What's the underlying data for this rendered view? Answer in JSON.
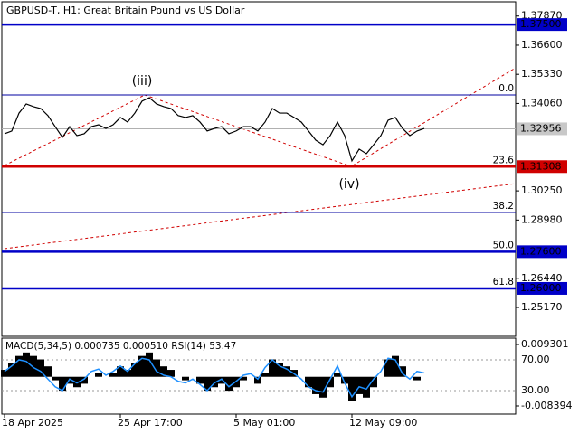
{
  "chart_data": [
    {
      "type": "line",
      "title": "GBPUSD-T, H1:  Great Britain Pound vs US Dollar",
      "categories": [
        "18 Apr 2025",
        null,
        null,
        null,
        null,
        null,
        null,
        null,
        null,
        null,
        null,
        null,
        null,
        null,
        null,
        null,
        "25 Apr 17:00",
        null,
        null,
        null,
        null,
        null,
        null,
        null,
        null,
        null,
        null,
        null,
        null,
        null,
        null,
        null,
        "5 May 01:00",
        null,
        null,
        null,
        null,
        null,
        null,
        null,
        null,
        null,
        null,
        null,
        null,
        null,
        null,
        null,
        "12 May 09:00",
        null,
        null,
        null,
        null,
        null,
        null,
        null,
        null,
        null,
        null
      ],
      "series": [
        {
          "color": "#000000",
          "values": [
            1.3274,
            1.3286,
            1.3364,
            1.3404,
            1.3392,
            1.3384,
            1.3353,
            1.3305,
            1.3258,
            1.3305,
            1.3266,
            1.3274,
            1.3305,
            1.3313,
            1.3297,
            1.3313,
            1.3345,
            1.3325,
            1.3364,
            1.3416,
            1.3431,
            1.3404,
            1.3392,
            1.3384,
            1.3353,
            1.3345,
            1.3353,
            1.3325,
            1.3286,
            1.3297,
            1.3305,
            1.3274,
            1.3286,
            1.3305,
            1.3305,
            1.3286,
            1.3325,
            1.3384,
            1.3364,
            1.3364,
            1.3345,
            1.3325,
            1.3286,
            1.3246,
            1.3226,
            1.3266,
            1.3325,
            1.3266,
            1.3156,
            1.3207,
            1.3187,
            1.3226,
            1.3266,
            1.3333,
            1.3345,
            1.3297,
            1.3266,
            1.3286,
            1.3297
          ]
        }
      ],
      "ylim": [
        1.2391,
        1.3849
      ],
      "yticks": [
        {
          "value": 1.3787,
          "label": "1.37870"
        },
        {
          "value": 1.366,
          "label": "1.36600"
        },
        {
          "value": 1.3533,
          "label": "1.35330"
        },
        {
          "value": 1.3406,
          "label": "1.34060"
        },
        {
          "value": 1.3025,
          "label": "1.30250"
        },
        {
          "value": 1.2898,
          "label": "1.28980"
        },
        {
          "value": 1.2644,
          "label": "1.26440"
        },
        {
          "value": 1.2517,
          "label": "1.25170"
        }
      ],
      "levels": [
        {
          "value": 1.375,
          "label": "1.37500",
          "color": "#0000c8"
        },
        {
          "value": 1.31308,
          "label": "1.31308",
          "color": "#d00000"
        },
        {
          "value": 1.276,
          "label": "1.27600",
          "color": "#0000c8"
        },
        {
          "value": 1.26,
          "label": "1.26000",
          "color": "#0000c8"
        }
      ],
      "fib_levels": [
        {
          "value": 1.3443,
          "label": "0.0"
        },
        {
          "value": 1.31308,
          "label": "23.6"
        },
        {
          "value": 1.2931,
          "label": "38.2"
        },
        {
          "value": 1.276,
          "label": "50.0"
        },
        {
          "value": 1.26,
          "label": "61.8"
        }
      ],
      "last_price": 1.32956,
      "annotations": [
        "(iii)",
        "(iv)"
      ]
    },
    {
      "type": "macd",
      "title": "MACD(5,34,5) 0.000735 0.000510 RSI(14) 53.47",
      "series": [
        {
          "type": "bar",
          "color": "#000000",
          "values": [
            0.002,
            0.004,
            0.006,
            0.007,
            0.006,
            0.005,
            0.003,
            -0.001,
            -0.004,
            -0.002,
            -0.003,
            -0.002,
            0,
            0.001,
            0,
            0.001,
            0.003,
            0.002,
            0.004,
            0.006,
            0.007,
            0.005,
            0.003,
            0.002,
            0,
            -0.001,
            0,
            -0.002,
            -0.004,
            -0.003,
            -0.002,
            -0.004,
            -0.003,
            -0.001,
            0,
            -0.002,
            0.001,
            0.005,
            0.004,
            0.003,
            0.002,
            0,
            -0.003,
            -0.005,
            -0.006,
            -0.003,
            0.001,
            -0.002,
            -0.007,
            -0.005,
            -0.006,
            -0.003,
            0,
            0.005,
            0.006,
            0.003,
            0,
            -0.001,
            0
          ]
        },
        {
          "type": "line",
          "color": "#1e90ff",
          "axis": "y2",
          "values": [
            55,
            62,
            70,
            68,
            60,
            55,
            45,
            35,
            30,
            45,
            40,
            45,
            55,
            58,
            50,
            55,
            62,
            55,
            65,
            72,
            70,
            55,
            50,
            48,
            42,
            40,
            45,
            38,
            30,
            40,
            45,
            35,
            42,
            50,
            52,
            45,
            60,
            70,
            62,
            58,
            52,
            45,
            35,
            30,
            28,
            45,
            62,
            40,
            22,
            35,
            32,
            45,
            55,
            72,
            70,
            52,
            45,
            55,
            53
          ]
        }
      ],
      "ylim": [
        -0.01074,
        0.01112
      ],
      "yticks": [
        0.009301,
        -0.008394
      ],
      "y2lim": [
        -0.6,
        98.2
      ],
      "y2ticks": [
        {
          "value": 70,
          "label": "70.00"
        },
        {
          "value": 30,
          "label": "30.00"
        }
      ]
    }
  ]
}
